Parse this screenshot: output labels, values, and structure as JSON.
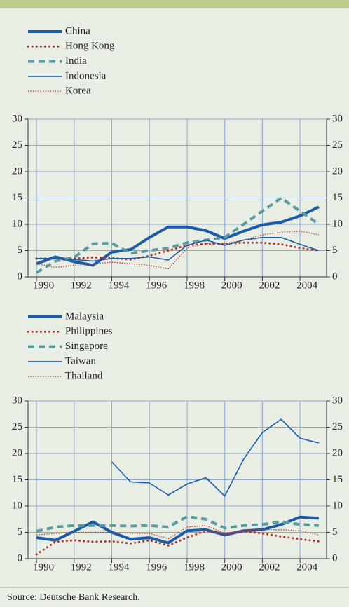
{
  "chart_data": [
    {
      "type": "line",
      "x": [
        1990,
        1991,
        1992,
        1993,
        1994,
        1995,
        1996,
        1997,
        1998,
        1999,
        2000,
        2001,
        2002,
        2003,
        2004,
        2005
      ],
      "xlim": [
        1989.55,
        2005.41
      ],
      "xticks": [
        1990,
        1992,
        1994,
        1996,
        1998,
        2000,
        2002,
        2004
      ],
      "ylim": [
        0,
        30
      ],
      "yticks": [
        0,
        5,
        10,
        15,
        20,
        25,
        30
      ],
      "grid": true,
      "series": [
        {
          "name": "China",
          "color": "#1b5ba8",
          "style": "thick",
          "values": [
            2.5,
            3.8,
            2.9,
            2.2,
            4.7,
            5.2,
            7.5,
            9.5,
            9.5,
            8.8,
            7.3,
            8.7,
            9.9,
            10.4,
            11.6,
            13.3
          ]
        },
        {
          "name": "Hong Kong",
          "color": "#b3302c",
          "style": "dotted",
          "values": [
            3.5,
            3.5,
            3.5,
            3.7,
            3.6,
            3.3,
            4.0,
            5.0,
            6.0,
            6.3,
            6.3,
            6.5,
            6.5,
            6.2,
            5.5,
            5.0
          ]
        },
        {
          "name": "India",
          "color": "#5b9ba0",
          "style": "dashed",
          "values": [
            0.8,
            3.0,
            3.7,
            6.3,
            6.4,
            4.5,
            5.0,
            5.5,
            6.5,
            7.0,
            7.5,
            10.0,
            12.5,
            15.0,
            12.5,
            10.0
          ]
        },
        {
          "name": "Indonesia",
          "color": "#1b5ba8",
          "style": "thin",
          "values": [
            3.5,
            3.5,
            3.3,
            3.0,
            3.5,
            3.5,
            3.8,
            3.2,
            6.0,
            7.0,
            6.0,
            7.0,
            7.5,
            7.5,
            6.2,
            5.0
          ]
        },
        {
          "name": "Korea",
          "color": "#b3302c",
          "style": "thin-dotted",
          "values": [
            2.5,
            1.8,
            2.2,
            2.5,
            2.8,
            2.5,
            2.2,
            1.5,
            5.5,
            6.3,
            6.3,
            7.0,
            8.0,
            8.5,
            8.7,
            8.0
          ]
        }
      ]
    },
    {
      "type": "line",
      "x": [
        1990,
        1991,
        1992,
        1993,
        1994,
        1995,
        1996,
        1997,
        1998,
        1999,
        2000,
        2001,
        2002,
        2003,
        2004,
        2005
      ],
      "xlim": [
        1989.55,
        2005.41
      ],
      "xticks": [
        1990,
        1992,
        1994,
        1996,
        1998,
        2000,
        2002,
        2004
      ],
      "ylim": [
        0,
        30
      ],
      "yticks": [
        0,
        5,
        10,
        15,
        20,
        25,
        30
      ],
      "grid": true,
      "series": [
        {
          "name": "Malaysia",
          "color": "#1b5ba8",
          "style": "thick",
          "values": [
            4.0,
            3.5,
            5.2,
            7.0,
            5.0,
            3.7,
            4.0,
            3.0,
            5.3,
            5.5,
            4.5,
            5.3,
            5.5,
            6.5,
            7.9,
            7.7
          ]
        },
        {
          "name": "Philippines",
          "color": "#b3302c",
          "style": "dotted",
          "values": [
            0.8,
            3.2,
            3.5,
            3.2,
            3.3,
            2.9,
            3.5,
            2.5,
            4.0,
            5.3,
            4.7,
            5.2,
            4.8,
            4.2,
            3.7,
            3.3
          ]
        },
        {
          "name": "Singapore",
          "color": "#5b9ba0",
          "style": "dashed",
          "values": [
            5.2,
            6.0,
            6.3,
            6.3,
            6.3,
            6.2,
            6.3,
            6.0,
            8.0,
            7.5,
            5.8,
            6.3,
            6.5,
            7.0,
            6.5,
            6.3
          ]
        },
        {
          "name": "Taiwan",
          "color": "#1b5ba8",
          "style": "thin",
          "values": [
            null,
            null,
            null,
            null,
            18.4,
            14.6,
            14.4,
            12.1,
            14.2,
            15.4,
            11.9,
            18.9,
            24.0,
            26.5,
            22.9,
            22.0
          ]
        },
        {
          "name": "Thailand",
          "color": "#b3302c",
          "style": "thin-dotted",
          "values": [
            4.5,
            4.8,
            5.0,
            5.0,
            5.0,
            4.8,
            4.8,
            3.8,
            6.0,
            6.3,
            4.8,
            5.3,
            5.5,
            5.5,
            5.3,
            4.5
          ]
        }
      ]
    }
  ],
  "source": "Source: Deutsche Bank Research."
}
